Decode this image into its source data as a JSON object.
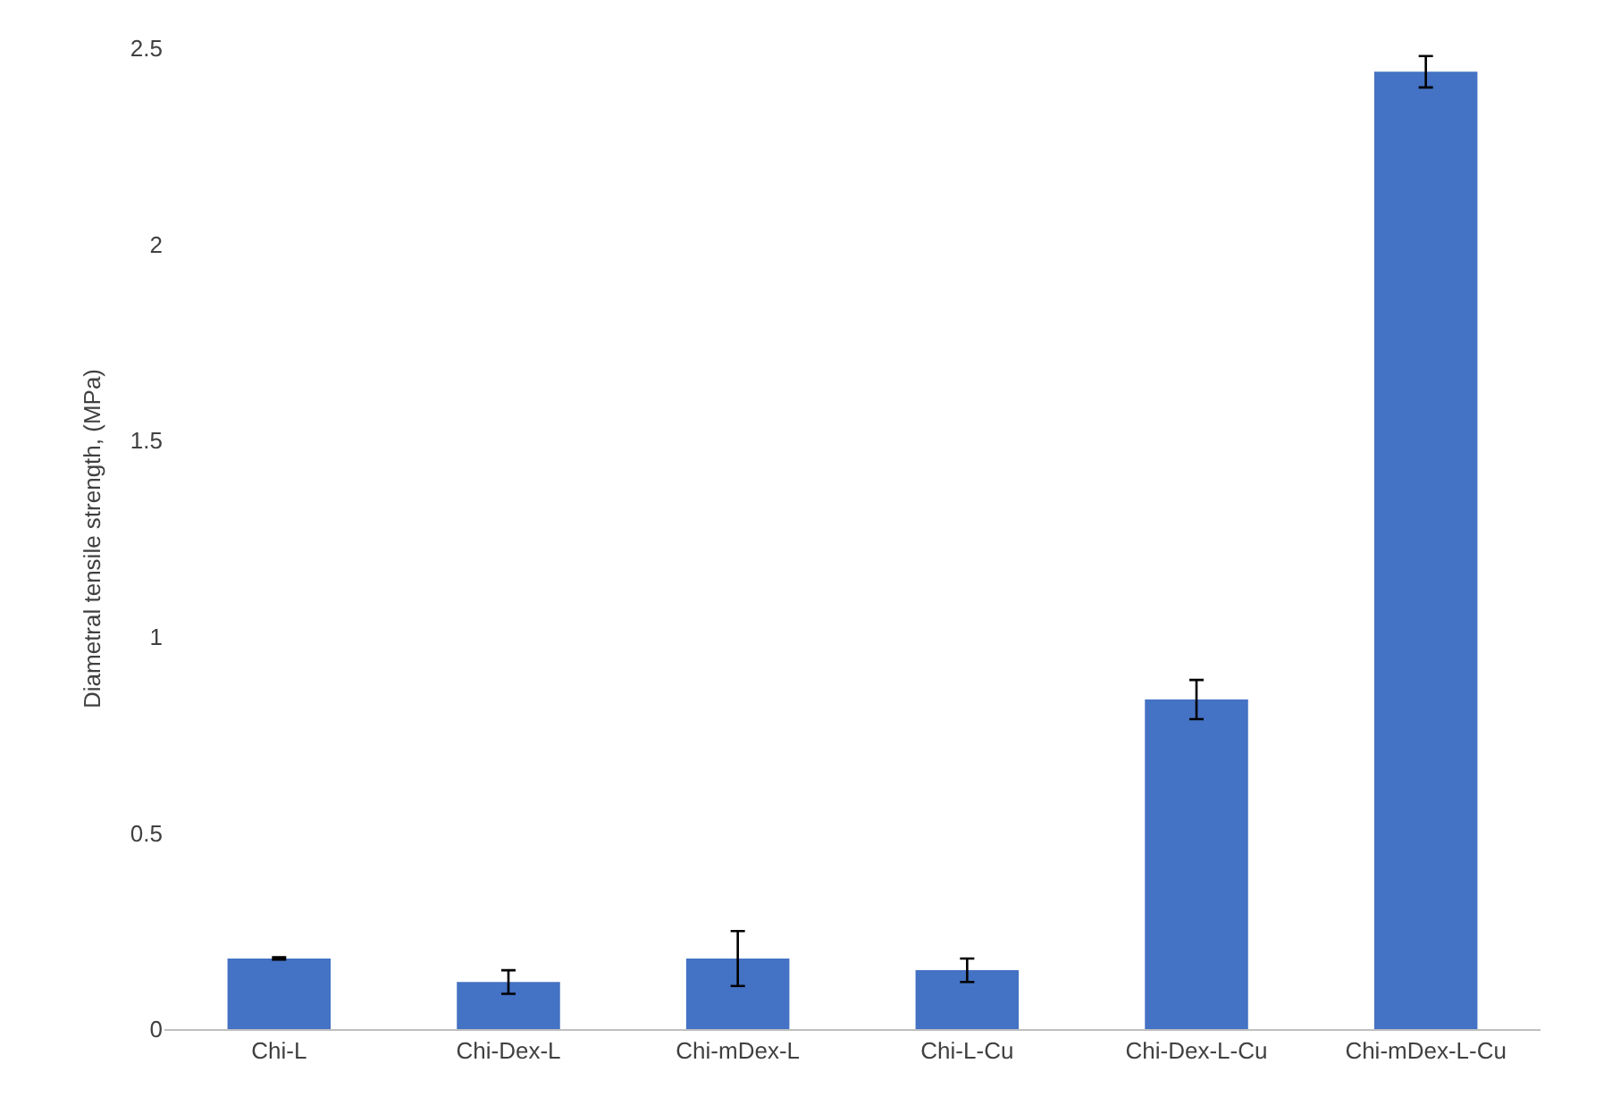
{
  "chart_data": {
    "type": "bar",
    "ylabel": "Diametral tensile strength, (MPa)",
    "categories": [
      "Chi-L",
      "Chi-Dex-L",
      "Chi-mDex-L",
      "Chi-L-Cu",
      "Chi-Dex-L-Cu",
      "Chi-mDex-L-Cu"
    ],
    "values": [
      0.18,
      0.12,
      0.18,
      0.15,
      0.84,
      2.44
    ],
    "errors": [
      0.003,
      0.03,
      0.07,
      0.03,
      0.05,
      0.04
    ],
    "color": "#4472c4",
    "ylim": [
      0,
      2.5
    ],
    "yticks": [
      0,
      0.5,
      1,
      1.5,
      2,
      2.5
    ],
    "grid": false
  }
}
